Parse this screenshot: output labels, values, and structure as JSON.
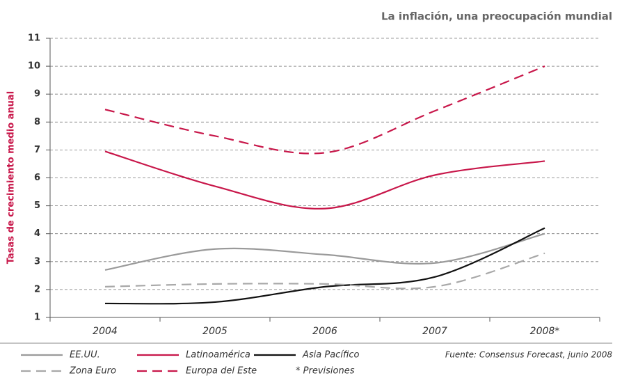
{
  "chart_data": {
    "type": "line",
    "title": "La inflación, una preocupación mundial",
    "y_label": "Tasas de crecimiento medio anual",
    "categories": [
      "2004",
      "2005",
      "2006",
      "2007",
      "2008*"
    ],
    "series": [
      {
        "name": "EE.UU.",
        "color": "#9a9a9a",
        "dashed": false,
        "values": [
          2.7,
          3.45,
          3.25,
          2.95,
          4.0
        ]
      },
      {
        "name": "Latinoamérica",
        "color": "#c8174a",
        "dashed": false,
        "values": [
          6.95,
          5.7,
          4.9,
          6.1,
          6.6
        ]
      },
      {
        "name": "Asia Pacífico",
        "color": "#111111",
        "dashed": false,
        "values": [
          1.5,
          1.55,
          2.1,
          2.45,
          4.2
        ]
      },
      {
        "name": "Zona Euro",
        "color": "#a8a8a8",
        "dashed": true,
        "values": [
          2.1,
          2.2,
          2.2,
          2.1,
          3.3
        ]
      },
      {
        "name": "Europa del Este",
        "color": "#c8174a",
        "dashed": true,
        "values": [
          8.45,
          7.5,
          6.9,
          8.4,
          10.0
        ]
      }
    ],
    "ylim": [
      1,
      11
    ],
    "yticks": [
      1,
      2,
      3,
      4,
      5,
      6,
      7,
      8,
      9,
      10,
      11
    ],
    "grid": true,
    "note": "* Previsiones",
    "source": "Fuente: Consensus Forecast, junio 2008"
  }
}
